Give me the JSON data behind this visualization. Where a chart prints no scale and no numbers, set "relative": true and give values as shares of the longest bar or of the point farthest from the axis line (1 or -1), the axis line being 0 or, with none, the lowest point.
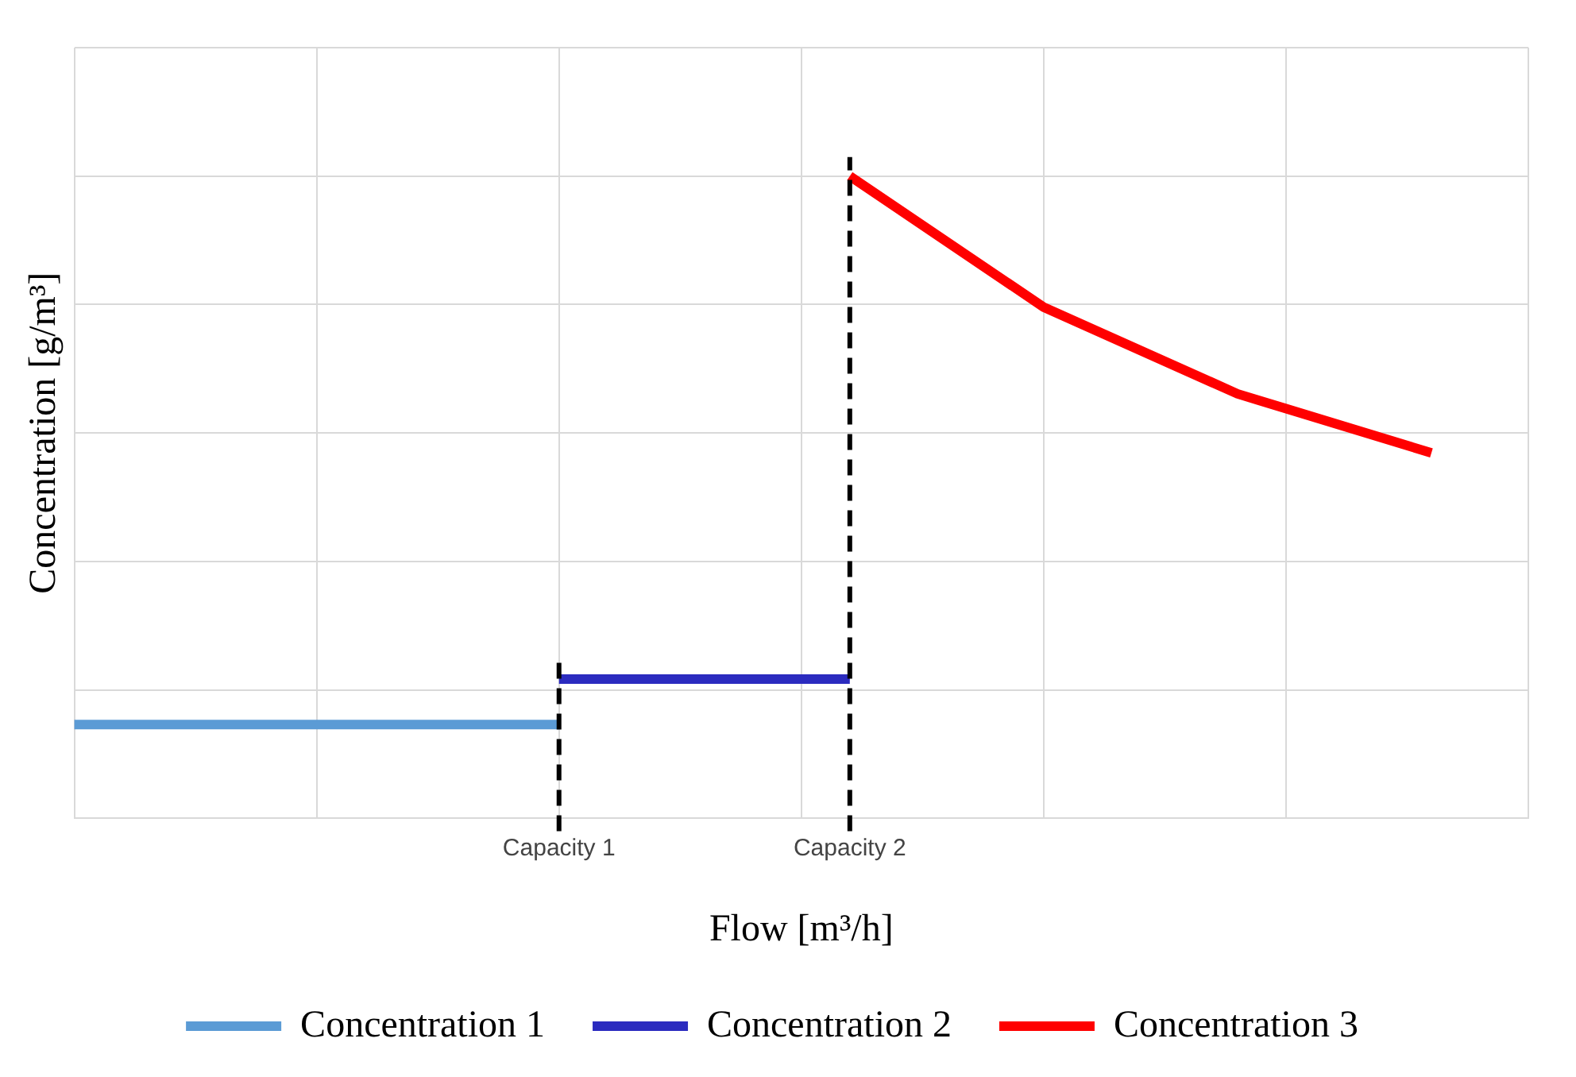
{
  "chart_data": {
    "type": "line",
    "relative": true,
    "xlabel": "Flow [m³/h]",
    "ylabel": "Concentration [g/m³]",
    "categories": [
      null,
      null,
      null,
      null,
      null,
      null,
      null,
      null,
      null,
      null,
      "Capacity 1",
      null,
      null,
      null,
      null,
      null,
      "Capacity 2",
      null,
      null,
      null,
      null,
      null,
      null,
      null,
      null,
      null,
      null,
      null,
      null,
      null,
      null
    ],
    "series": [
      {
        "name": "Concentration 1",
        "color": "#5b9bd5",
        "values": [
          0.146,
          null,
          null,
          null,
          null,
          null,
          null,
          null,
          null,
          null,
          0.146,
          null,
          null,
          null,
          null,
          null,
          null,
          null,
          null,
          null,
          null,
          null,
          null,
          null,
          null,
          null,
          null,
          null,
          null,
          null,
          null
        ]
      },
      {
        "name": "Concentration 2",
        "color": "#2b2bbf",
        "values": [
          null,
          null,
          null,
          null,
          null,
          null,
          null,
          null,
          null,
          null,
          0.217,
          null,
          null,
          null,
          null,
          null,
          0.217,
          null,
          null,
          null,
          null,
          null,
          null,
          null,
          null,
          null,
          null,
          null,
          null,
          null,
          null
        ]
      },
      {
        "name": "Concentration 3",
        "color": "#ff0000",
        "values": [
          null,
          null,
          null,
          null,
          null,
          null,
          null,
          null,
          null,
          null,
          null,
          null,
          null,
          null,
          null,
          null,
          1,
          null,
          null,
          null,
          0.796,
          null,
          null,
          null,
          0.661,
          null,
          null,
          null,
          0.569,
          null,
          null
        ]
      }
    ],
    "ref_lines": [
      {
        "axis": "x",
        "value": "Capacity 1",
        "color": "#000000",
        "line_style": "dashed"
      },
      {
        "axis": "x",
        "value": "Capacity 2",
        "color": "#000000",
        "line_style": "dashed"
      }
    ],
    "grid": true,
    "legend": "bottom",
    "marker": "none",
    "line_style": "solid"
  }
}
